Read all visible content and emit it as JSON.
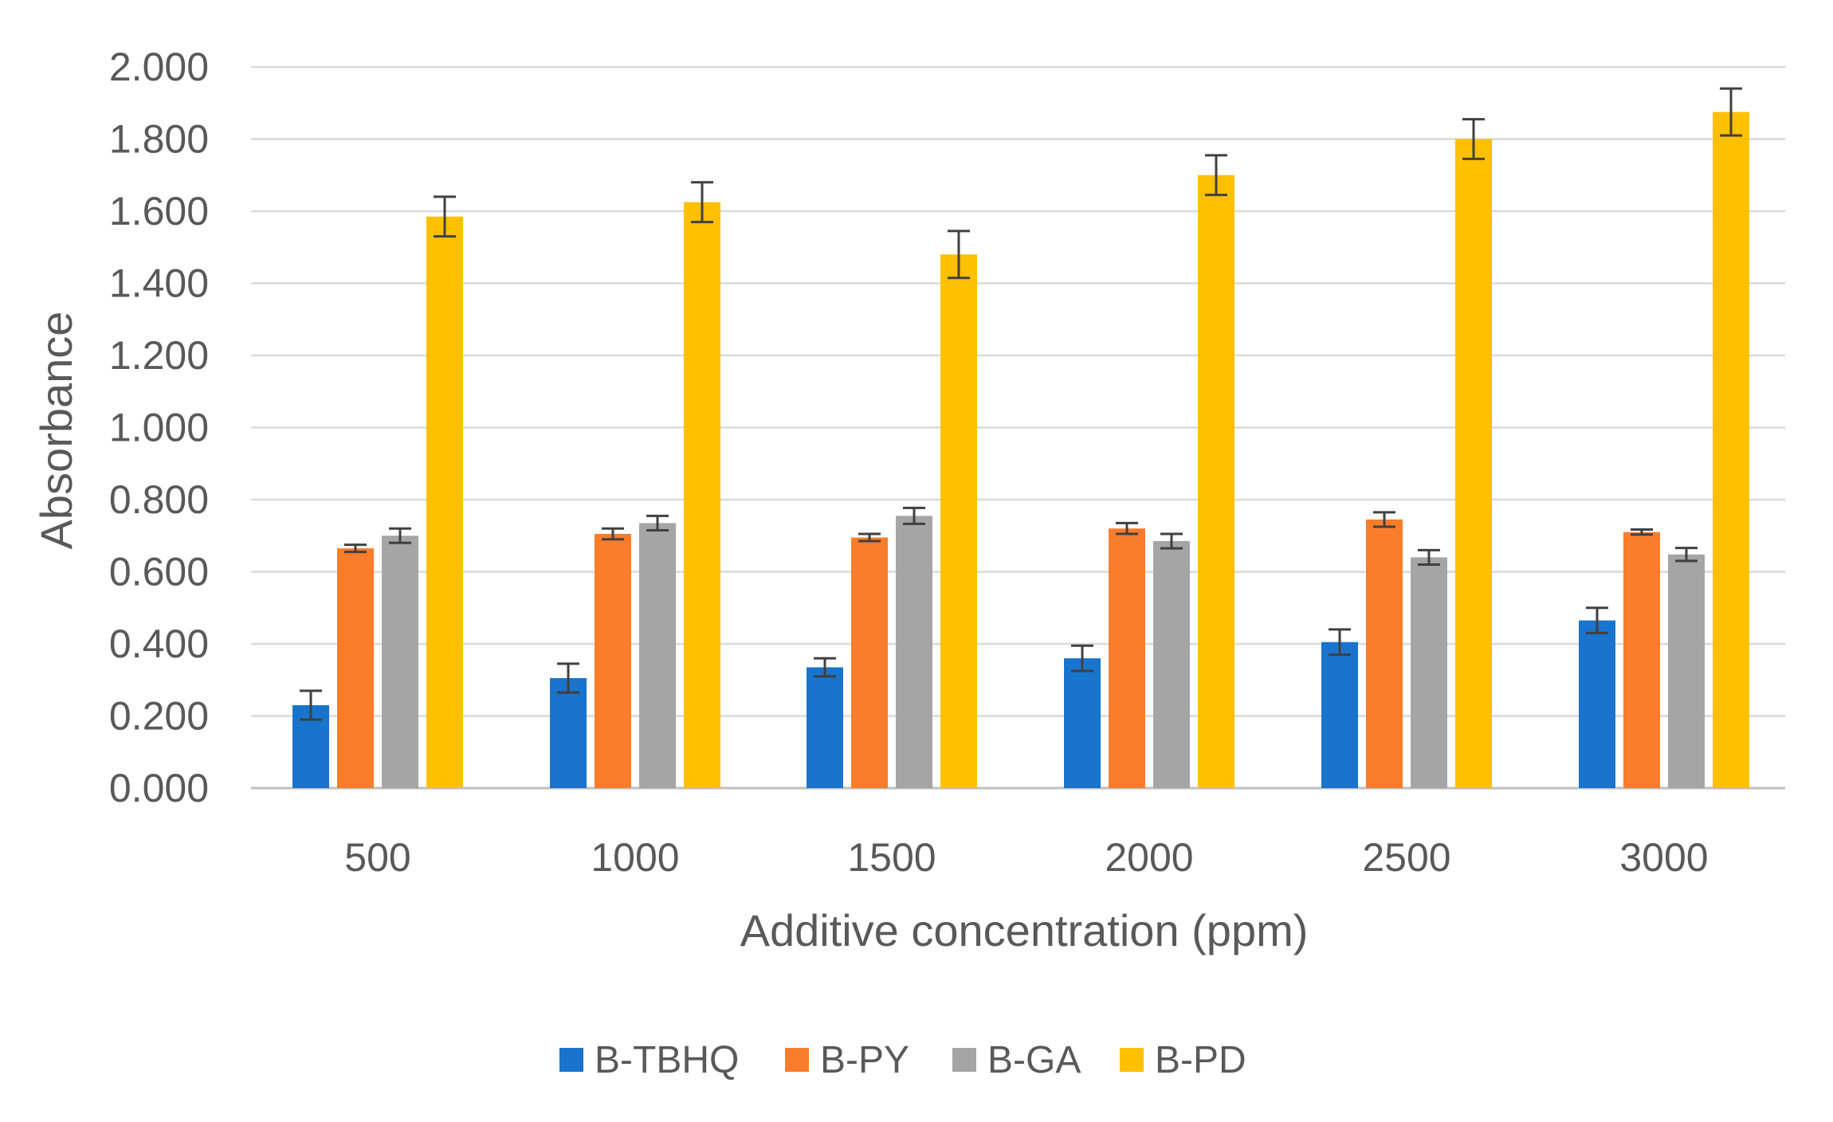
{
  "chart_data": {
    "type": "bar",
    "title": "",
    "xlabel": "Additive concentration (ppm)",
    "ylabel": "Absorbance",
    "ylim": [
      0,
      2.0
    ],
    "yticks": [
      0,
      0.2,
      0.4,
      0.6,
      0.8,
      1.0,
      1.2,
      1.4,
      1.6,
      1.8,
      2.0
    ],
    "ytick_labels": [
      "0.000",
      "0.200",
      "0.400",
      "0.600",
      "0.800",
      "1.000",
      "1.200",
      "1.400",
      "1.600",
      "1.800",
      "2.000"
    ],
    "grid": true,
    "legend_position": "bottom",
    "categories": [
      "500",
      "1000",
      "1500",
      "2000",
      "2500",
      "3000"
    ],
    "series": [
      {
        "name": "B-TBHQ",
        "color": "#1874CD",
        "values": [
          0.23,
          0.305,
          0.335,
          0.36,
          0.405,
          0.465
        ],
        "errors": [
          0.04,
          0.04,
          0.025,
          0.035,
          0.035,
          0.035
        ]
      },
      {
        "name": "B-PY",
        "color": "#F97D2B",
        "values": [
          0.665,
          0.705,
          0.695,
          0.72,
          0.745,
          0.71
        ],
        "errors": [
          0.01,
          0.015,
          0.01,
          0.015,
          0.02,
          0.007
        ]
      },
      {
        "name": "B-GA",
        "color": "#A5A5A5",
        "values": [
          0.7,
          0.735,
          0.755,
          0.685,
          0.64,
          0.648
        ],
        "errors": [
          0.02,
          0.02,
          0.022,
          0.02,
          0.02,
          0.018
        ]
      },
      {
        "name": "B-PD",
        "color": "#FFC000",
        "values": [
          1.585,
          1.625,
          1.48,
          1.7,
          1.8,
          1.875
        ],
        "errors": [
          0.055,
          0.055,
          0.065,
          0.055,
          0.055,
          0.065
        ]
      }
    ]
  }
}
